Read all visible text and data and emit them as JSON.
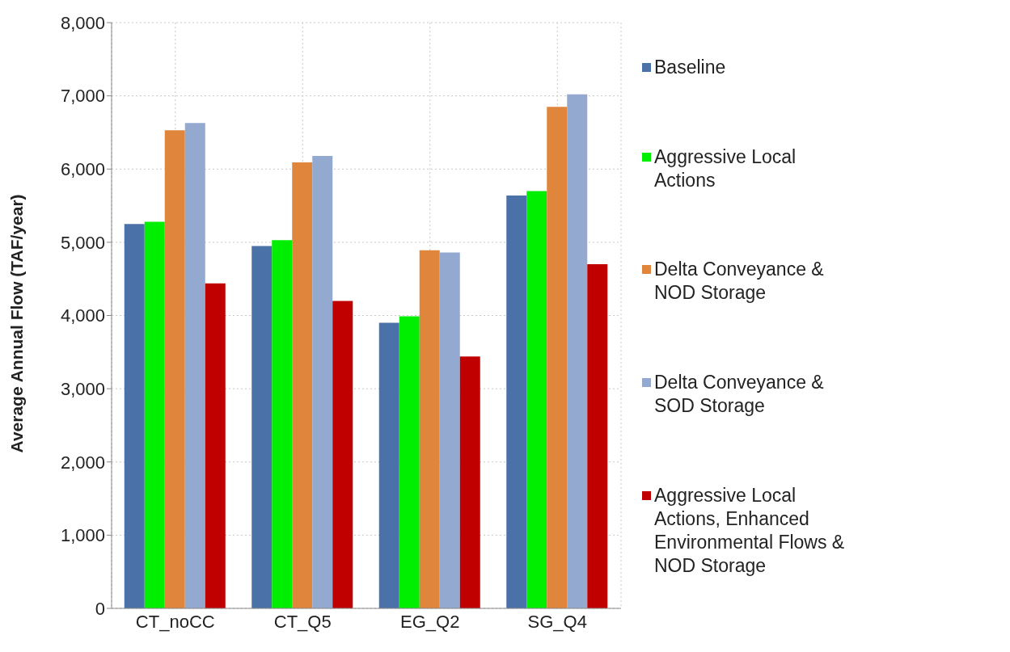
{
  "chart_data": {
    "type": "bar",
    "ylabel": "Average Annual Flow (TAF/year)",
    "categories": [
      "CT_noCC",
      "CT_Q5",
      "EG_Q2",
      "SG_Q4"
    ],
    "series": [
      {
        "name": "Baseline",
        "color": "#4a72a8",
        "values": [
          5250,
          4950,
          3900,
          5640
        ]
      },
      {
        "name": "Aggressive Local Actions",
        "color": "#00ee00",
        "values": [
          5280,
          5030,
          3990,
          5700
        ]
      },
      {
        "name": "Delta Conveyance & NOD Storage",
        "color": "#e0853c",
        "values": [
          6530,
          6090,
          4890,
          6850
        ]
      },
      {
        "name": "Delta Conveyance & SOD Storage",
        "color": "#93a9d0",
        "values": [
          6630,
          6180,
          4860,
          7020
        ]
      },
      {
        "name": "Aggressive Local Actions, Enhanced Environmental Flows & NOD Storage",
        "color": "#c00000",
        "values": [
          4440,
          4200,
          3440,
          4700
        ]
      }
    ],
    "ylim": [
      0,
      8000
    ],
    "yticks": [
      0,
      {
        "value": 1000,
        "label": "1,000"
      },
      {
        "value": 2000,
        "label": "2,000"
      },
      {
        "value": 3000,
        "label": "3,000"
      },
      {
        "value": 4000,
        "label": "4,000"
      },
      {
        "value": 5000,
        "label": "5,000"
      },
      {
        "value": 6000,
        "label": "6,000"
      },
      {
        "value": 7000,
        "label": "7,000"
      },
      {
        "value": 8000,
        "label": "8,000"
      }
    ],
    "grid": true,
    "legend": "right"
  }
}
